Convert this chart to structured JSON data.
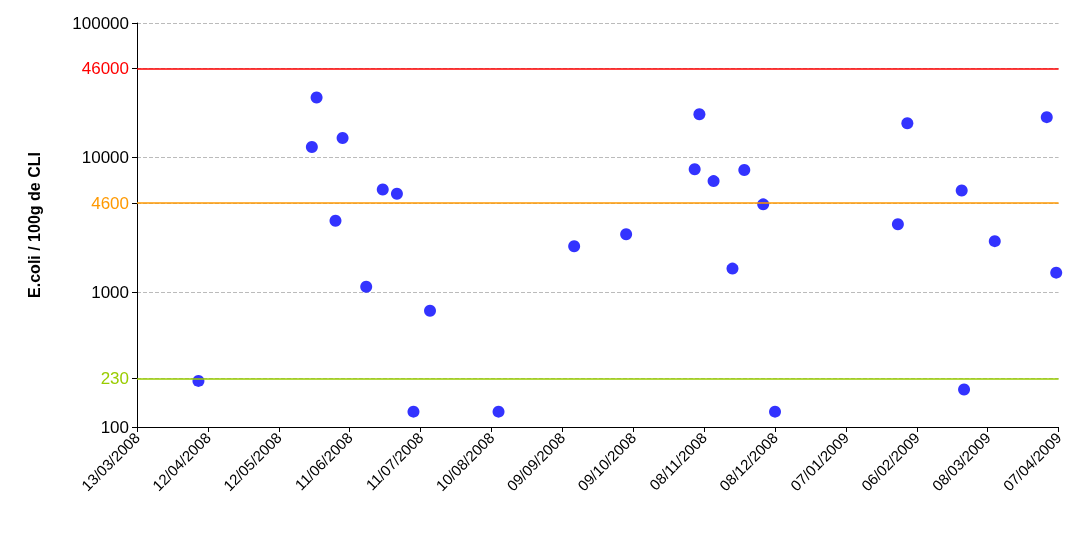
{
  "chart_data": {
    "type": "scatter",
    "ylabel": "E.coli / 100g de CLI",
    "log": "y",
    "grid": "y",
    "marker": "circle",
    "x": [
      "2008-04-08",
      "2008-05-26",
      "2008-05-28",
      "2008-06-05",
      "2008-06-08",
      "2008-06-18",
      "2008-06-25",
      "2008-07-01",
      "2008-07-08",
      "2008-07-15",
      "2008-08-13",
      "2008-09-14",
      "2008-10-06",
      "2008-11-04",
      "2008-11-06",
      "2008-11-12",
      "2008-11-20",
      "2008-11-25",
      "2008-12-03",
      "2008-12-08",
      "2009-01-29",
      "2009-02-02",
      "2009-02-25",
      "2009-02-26",
      "2009-03-11",
      "2009-04-02",
      "2009-04-06"
    ],
    "series": [
      {
        "color": "#0000ff",
        "values": [
          220,
          12000,
          28000,
          3400,
          14000,
          1100,
          5800,
          5400,
          130,
          730,
          130,
          2200,
          2700,
          8200,
          21000,
          6700,
          1500,
          8100,
          4500,
          130,
          3200,
          18000,
          5700,
          190,
          2400,
          20000,
          1400
        ]
      }
    ],
    "xlim": [
      "2008-03-13",
      "2009-04-07"
    ],
    "xticks": [
      {
        "value": "2008-03-13",
        "label": "13/03/2008"
      },
      {
        "value": "2008-04-12",
        "label": "12/04/2008"
      },
      {
        "value": "2008-05-12",
        "label": "12/05/2008"
      },
      {
        "value": "2008-06-11",
        "label": "11/06/2008"
      },
      {
        "value": "2008-07-11",
        "label": "11/07/2008"
      },
      {
        "value": "2008-08-10",
        "label": "10/08/2008"
      },
      {
        "value": "2008-09-09",
        "label": "09/09/2008"
      },
      {
        "value": "2008-10-09",
        "label": "09/10/2008"
      },
      {
        "value": "2008-11-08",
        "label": "08/11/2008"
      },
      {
        "value": "2008-12-08",
        "label": "08/12/2008"
      },
      {
        "value": "2009-01-07",
        "label": "07/01/2009"
      },
      {
        "value": "2009-02-06",
        "label": "06/02/2009"
      },
      {
        "value": "2009-03-08",
        "label": "08/03/2009"
      },
      {
        "value": "2009-04-07",
        "label": "07/04/2009"
      }
    ],
    "ylim": [
      100,
      100000
    ],
    "yticks": [
      100,
      230,
      1000,
      4600,
      10000,
      46000,
      100000
    ],
    "ref_lines": [
      {
        "axis": "y",
        "value": 230,
        "color": "#99cc00"
      },
      {
        "axis": "y",
        "value": 4600,
        "color": "#ff9900"
      },
      {
        "axis": "y",
        "value": 46000,
        "color": "#ff0000"
      }
    ]
  }
}
